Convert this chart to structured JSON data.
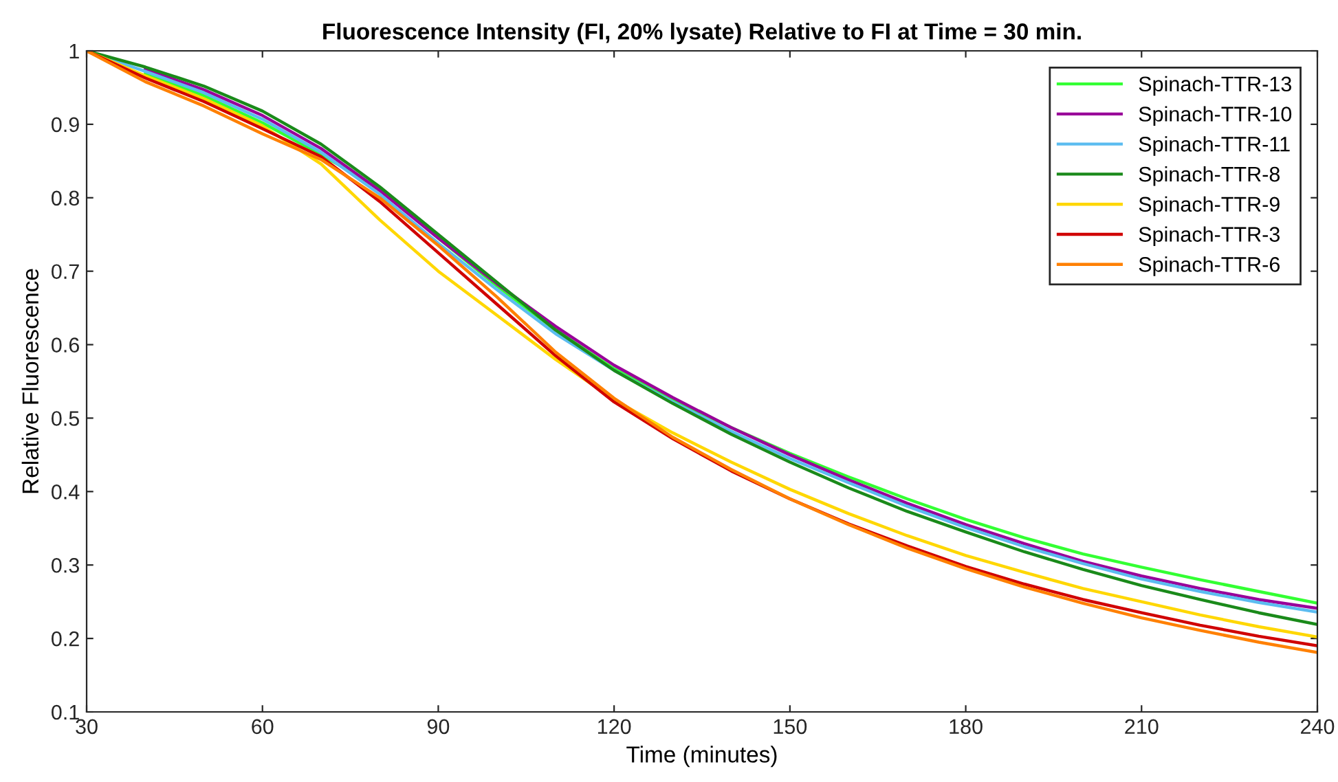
{
  "chart_data": {
    "type": "line",
    "title": "Fluorescence Intensity (FI, 20% lysate) Relative to FI at Time = 30 min.",
    "xlabel": "Time (minutes)",
    "ylabel": "Relative Fluorescence",
    "x": [
      30,
      40,
      50,
      60,
      70,
      80,
      90,
      100,
      110,
      120,
      130,
      140,
      150,
      160,
      170,
      180,
      190,
      200,
      210,
      220,
      230,
      240
    ],
    "xlim": [
      30,
      240
    ],
    "xticks": [
      30,
      60,
      90,
      120,
      150,
      180,
      210,
      240
    ],
    "ylim": [
      0.1,
      1
    ],
    "yticks": [
      0.1,
      0.2,
      0.3,
      0.4,
      0.5,
      0.6,
      0.7,
      0.8,
      0.9,
      1
    ],
    "grid": false,
    "legend": "top right",
    "marker": "none",
    "line_style": "solid",
    "series": [
      {
        "name": "Spinach-TTR-13",
        "color": "#33ff33",
        "values": [
          null,
          0.969,
          0.939,
          0.902,
          0.859,
          0.812,
          0.745,
          0.68,
          0.62,
          0.567,
          0.525,
          0.487,
          0.452,
          0.42,
          0.39,
          0.362,
          0.337,
          0.315,
          0.297,
          0.28,
          0.264,
          0.248
        ]
      },
      {
        "name": "Spinach-TTR-10",
        "color": "#990099",
        "values": [
          null,
          0.975,
          0.947,
          0.912,
          0.867,
          0.81,
          0.745,
          0.683,
          0.625,
          0.572,
          0.528,
          0.487,
          0.45,
          0.416,
          0.384,
          0.355,
          0.329,
          0.305,
          0.285,
          0.268,
          0.253,
          0.241
        ]
      },
      {
        "name": "Spinach-TTR-11",
        "color": "#5bbcf0",
        "values": [
          1,
          0.972,
          0.943,
          0.907,
          0.862,
          0.805,
          0.738,
          0.675,
          0.615,
          0.565,
          0.522,
          0.482,
          0.445,
          0.412,
          0.38,
          0.351,
          0.325,
          0.302,
          0.281,
          0.264,
          0.249,
          0.236
        ]
      },
      {
        "name": "Spinach-TTR-8",
        "color": "#1a8a1a",
        "values": [
          1,
          0.978,
          0.952,
          0.918,
          0.873,
          0.815,
          0.75,
          0.685,
          0.62,
          0.565,
          0.52,
          0.478,
          0.44,
          0.405,
          0.373,
          0.345,
          0.318,
          0.294,
          0.272,
          0.253,
          0.235,
          0.219
        ]
      },
      {
        "name": "Spinach-TTR-9",
        "color": "#ffd700",
        "values": [
          1,
          0.966,
          0.935,
          0.898,
          0.846,
          0.77,
          0.7,
          0.64,
          0.58,
          0.525,
          0.48,
          0.44,
          0.403,
          0.37,
          0.34,
          0.313,
          0.29,
          0.268,
          0.25,
          0.232,
          0.216,
          0.202
        ]
      },
      {
        "name": "Spinach-TTR-3",
        "color": "#d00000",
        "values": [
          1,
          0.963,
          0.931,
          0.894,
          0.856,
          0.795,
          0.725,
          0.655,
          0.585,
          0.522,
          0.472,
          0.428,
          0.39,
          0.356,
          0.326,
          0.298,
          0.274,
          0.253,
          0.235,
          0.218,
          0.203,
          0.19
        ]
      },
      {
        "name": "Spinach-TTR-6",
        "color": "#ff8000",
        "values": [
          1,
          0.958,
          0.925,
          0.887,
          0.852,
          0.8,
          0.735,
          0.665,
          0.59,
          0.527,
          0.474,
          0.43,
          0.39,
          0.355,
          0.323,
          0.295,
          0.27,
          0.248,
          0.228,
          0.211,
          0.195,
          0.181
        ]
      }
    ]
  }
}
